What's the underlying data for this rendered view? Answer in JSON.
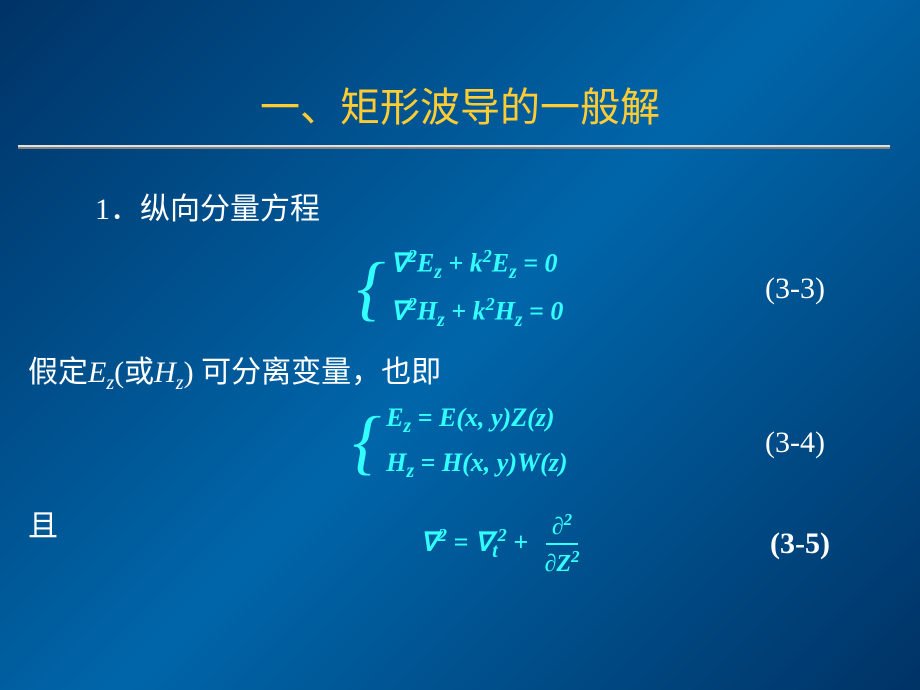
{
  "colors": {
    "background_gradient_start": "#003366",
    "background_gradient_mid": "#0066aa",
    "background_gradient_end": "#003366",
    "title_color": "#ffcc33",
    "text_color": "#ffffff",
    "equation_color": "#33ffff",
    "underline_color": "#e0e0e0"
  },
  "typography": {
    "title_fontsize": 40,
    "heading_fontsize": 30,
    "body_fontsize": 30,
    "equation_fontsize": 26,
    "title_font": "KaiTi",
    "body_font": "SimSun",
    "equation_font": "Times New Roman"
  },
  "title": "一、矩形波导的一般解",
  "heading": "1．纵向分量方程",
  "eq3_3": {
    "line1": "∇²E_z + k²E_z = 0",
    "line2": "∇²H_z + k²H_z = 0",
    "number": "(3-3)"
  },
  "body1_pre": "假定",
  "body1_var1": "E",
  "body1_sub1": "z",
  "body1_mid": "(或",
  "body1_var2": "H",
  "body1_sub2": "z",
  "body1_post": ") 可分离变量，也即",
  "eq3_4": {
    "line1": "E_z = E(x, y)Z(z)",
    "line2": "H_z = H(x, y)W(z)",
    "number": "(3-4)"
  },
  "body2": "且",
  "eq3_5": {
    "lhs": "∇² = ∇_t² + ",
    "frac_num": "∂²",
    "frac_den": "∂Z²",
    "number": "(3-5)"
  }
}
